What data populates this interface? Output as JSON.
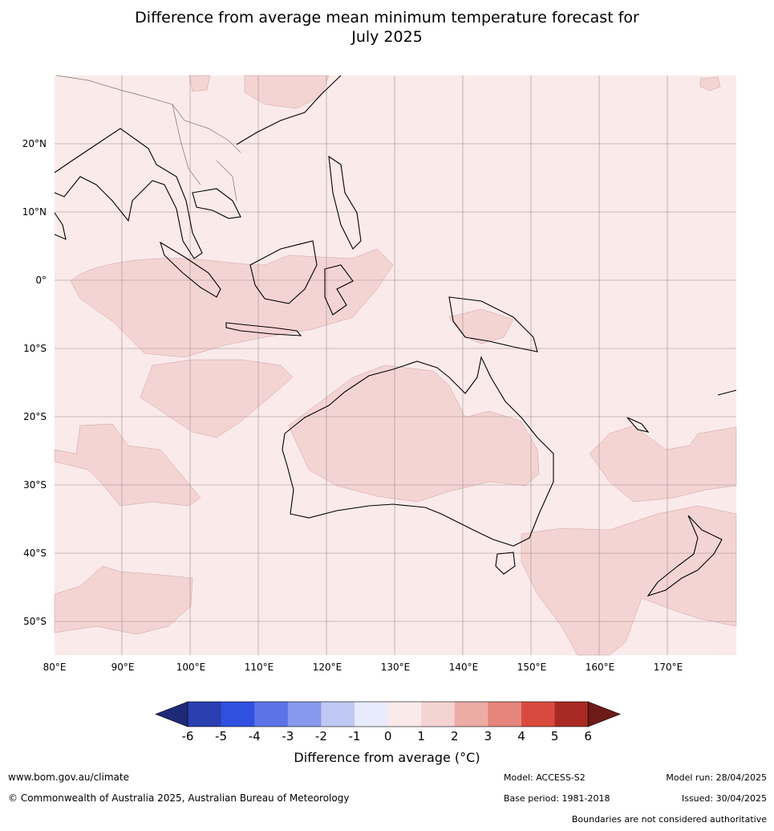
{
  "title_line1": "Difference from average mean minimum temperature forecast for",
  "title_line2": "July 2025",
  "lat_labels": [
    "20°N",
    "10°N",
    "0°",
    "10°S",
    "20°S",
    "30°S",
    "40°S",
    "50°S"
  ],
  "lon_labels": [
    "80°E",
    "90°E",
    "100°E",
    "110°E",
    "120°E",
    "130°E",
    "140°E",
    "150°E",
    "160°E",
    "170°E"
  ],
  "legend": {
    "title": "Difference from average (°C)",
    "ticks": [
      "-6",
      "-5",
      "-4",
      "-3",
      "-2",
      "-1",
      "0",
      "1",
      "2",
      "3",
      "4",
      "5",
      "6"
    ],
    "colors": [
      "#1e2a78",
      "#2a3fb0",
      "#3050e0",
      "#5b73e6",
      "#8799ee",
      "#c0c8f4",
      "#e8ebfb",
      "#fbeaea",
      "#f4d4d3",
      "#edaba6",
      "#e6857c",
      "#d94a3e",
      "#a92a22",
      "#6e1a18"
    ]
  },
  "map_colors": {
    "band_0_1": "#fbeaea",
    "band_1_2": "#f4d4d3"
  },
  "footer": {
    "website": "www.bom.gov.au/climate",
    "copyright": "© Commonwealth of Australia 2025, Australian Bureau of Meteorology",
    "model": "Model: ACCESS-S2",
    "model_run": "Model run: 28/04/2025",
    "base_period": "Base period: 1981-2018",
    "issued": "Issued: 30/04/2025",
    "disclaimer": "Boundaries are not considered authoritative"
  }
}
